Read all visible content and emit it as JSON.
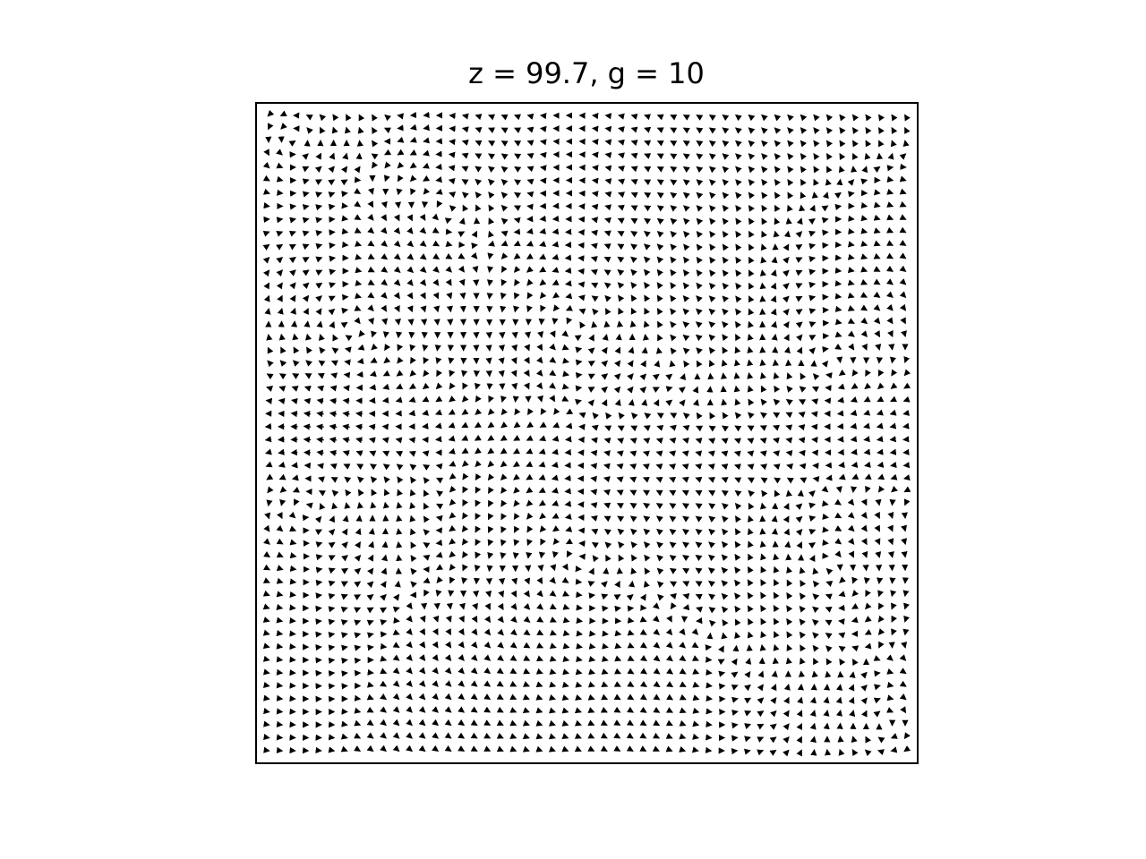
{
  "chart_data": {
    "type": "quiver",
    "title": "z = 99.7, g = 10",
    "xlabel": "",
    "ylabel": "",
    "axes_visible": false,
    "grid": false,
    "legend": "none",
    "arrow_color": "#000000",
    "frame_color": "#000000",
    "background_color": "#ffffff",
    "field": {
      "grid_cols": 50,
      "grid_rows": 50,
      "x_range": [
        0,
        1
      ],
      "y_range": [
        0,
        1
      ],
      "vortices": [
        {
          "x": 0.27,
          "y": 0.85,
          "strength": 0.55,
          "radius": 0.05
        },
        {
          "x": 0.13,
          "y": 0.66,
          "strength": -0.65,
          "radius": 0.07
        },
        {
          "x": 0.48,
          "y": 0.67,
          "strength": 0.8,
          "radius": 0.08
        },
        {
          "x": 0.68,
          "y": 0.6,
          "strength": 0.45,
          "radius": 0.05
        },
        {
          "x": 0.88,
          "y": 0.6,
          "strength": -0.5,
          "radius": 0.05
        },
        {
          "x": 0.06,
          "y": 0.4,
          "strength": 0.6,
          "radius": 0.07
        },
        {
          "x": 0.48,
          "y": 0.3,
          "strength": 0.75,
          "radius": 0.08
        },
        {
          "x": 0.72,
          "y": 0.19,
          "strength": 0.7,
          "radius": 0.08
        },
        {
          "x": 0.85,
          "y": 0.27,
          "strength": -0.65,
          "radius": 0.07
        },
        {
          "x": 0.28,
          "y": 0.38,
          "strength": -0.4,
          "radius": 0.05
        },
        {
          "x": 0.04,
          "y": 0.96,
          "strength": 0.4,
          "radius": 0.05
        },
        {
          "x": 0.97,
          "y": 0.04,
          "strength": -0.45,
          "radius": 0.05
        }
      ],
      "shear_band_y": 0.49,
      "shear_band_strength": 0.18
    }
  }
}
